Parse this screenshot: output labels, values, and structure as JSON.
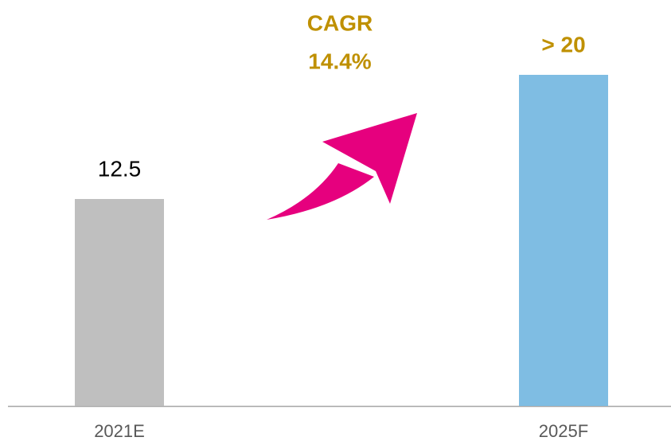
{
  "chart_data": {
    "type": "bar",
    "categories": [
      "2021E",
      "2025F"
    ],
    "values": [
      12.5,
      20
    ],
    "value_labels": [
      "12.5",
      "> 20"
    ],
    "colors": [
      "#bfbfbf",
      "#7fbde3"
    ],
    "ylim": [
      0,
      20
    ],
    "annotations": [
      "CAGR",
      "14.4%"
    ]
  }
}
